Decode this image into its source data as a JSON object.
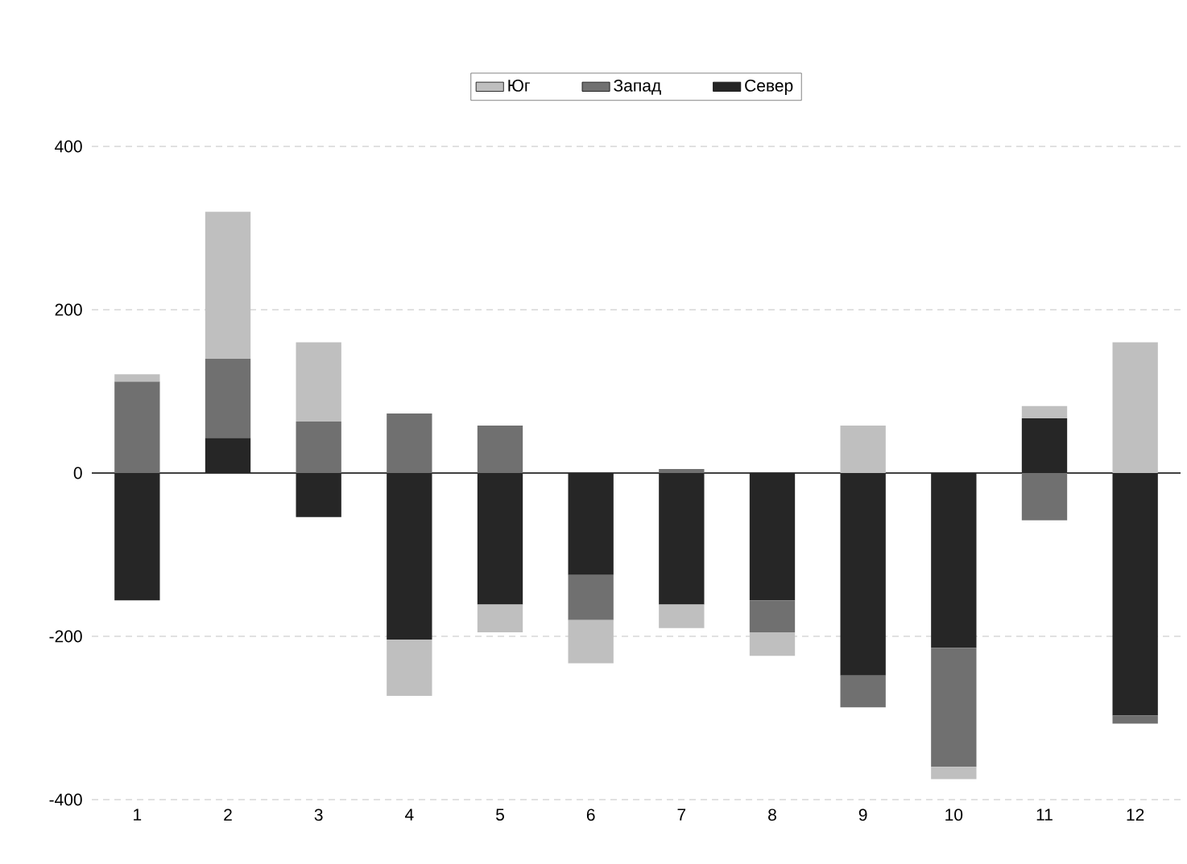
{
  "chart_data": {
    "type": "bar",
    "stacked": true,
    "categories": [
      "1",
      "2",
      "3",
      "4",
      "5",
      "6",
      "7",
      "8",
      "9",
      "10",
      "11",
      "12"
    ],
    "series": [
      {
        "name": "Север",
        "color": "#262626",
        "values": [
          -156,
          43,
          -54,
          -204,
          -161,
          -125,
          -161,
          -156,
          -248,
          -214,
          67,
          -297
        ]
      },
      {
        "name": "Запад",
        "color": "#707070",
        "values": [
          112,
          97,
          63,
          73,
          58,
          -55,
          5,
          -39,
          -39,
          -146,
          -58,
          -10
        ]
      },
      {
        "name": "Юг",
        "color": "#bfbfbf",
        "values": [
          9,
          180,
          97,
          -69,
          -34,
          -53,
          -29,
          -29,
          58,
          -15,
          15,
          160
        ]
      }
    ],
    "ylim": [
      -400,
      400
    ],
    "yticks": [
      -400,
      -200,
      0,
      200,
      400
    ],
    "grid": "y",
    "legend": "top"
  }
}
